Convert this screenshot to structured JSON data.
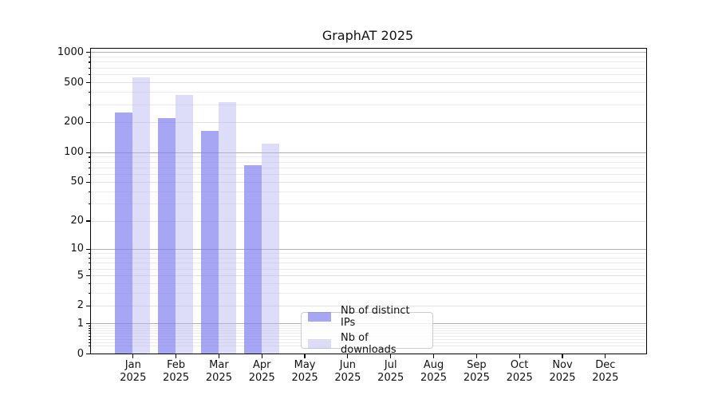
{
  "chart_data": {
    "type": "bar",
    "title": "GraphAT 2025",
    "categories": [
      "Jan",
      "Feb",
      "Mar",
      "Apr",
      "May",
      "Jun",
      "Jul",
      "Aug",
      "Sep",
      "Oct",
      "Nov",
      "Dec"
    ],
    "category_year": "2025",
    "series": [
      {
        "name": "Nb of distinct IPs",
        "color": "rgba(124,124,240,0.68)",
        "values": [
          250,
          220,
          165,
          75,
          0,
          0,
          0,
          0,
          0,
          0,
          0,
          0
        ]
      },
      {
        "name": "Nb of downloads",
        "color": "rgba(179,179,241,0.45)",
        "values": [
          560,
          380,
          320,
          122,
          0,
          0,
          0,
          0,
          0,
          0,
          0,
          0
        ]
      }
    ],
    "yscale": "log1p",
    "yticks": [
      0,
      1,
      2,
      5,
      10,
      20,
      50,
      100,
      200,
      500,
      1000
    ],
    "ytick_labels": [
      "0",
      "1",
      "2",
      "5",
      "10",
      "20",
      "50",
      "100",
      "200",
      "500",
      "1000"
    ],
    "ylim": [
      0,
      1110
    ],
    "xlabel": "",
    "ylabel": "",
    "grid": "horizontal, log decades dark + minor light",
    "grid_major_color": "#b0b0b0",
    "grid_minor_color": "#ececec",
    "legend": {
      "position": "lower center",
      "labels": [
        "Nb of distinct IPs",
        "Nb of downloads"
      ]
    }
  }
}
